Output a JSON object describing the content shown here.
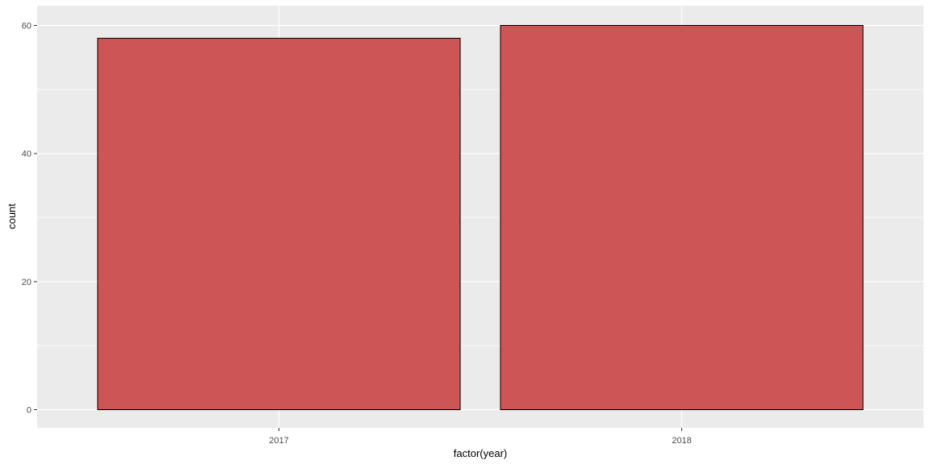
{
  "chart_data": {
    "type": "bar",
    "title": "",
    "xlabel": "factor(year)",
    "ylabel": "count",
    "categories": [
      "2017",
      "2018"
    ],
    "values": [
      58,
      60
    ],
    "ylim": [
      0,
      63
    ],
    "yticks": [
      0,
      20,
      40,
      60
    ],
    "grid": true,
    "colors": {
      "bar_fill": "#cd5555",
      "bar_stroke": "#000000",
      "panel_background": "#ebebeb",
      "grid_major": "#ffffff",
      "grid_minor": "#f5f5f5",
      "tick_label": "#4d4d4d"
    }
  }
}
